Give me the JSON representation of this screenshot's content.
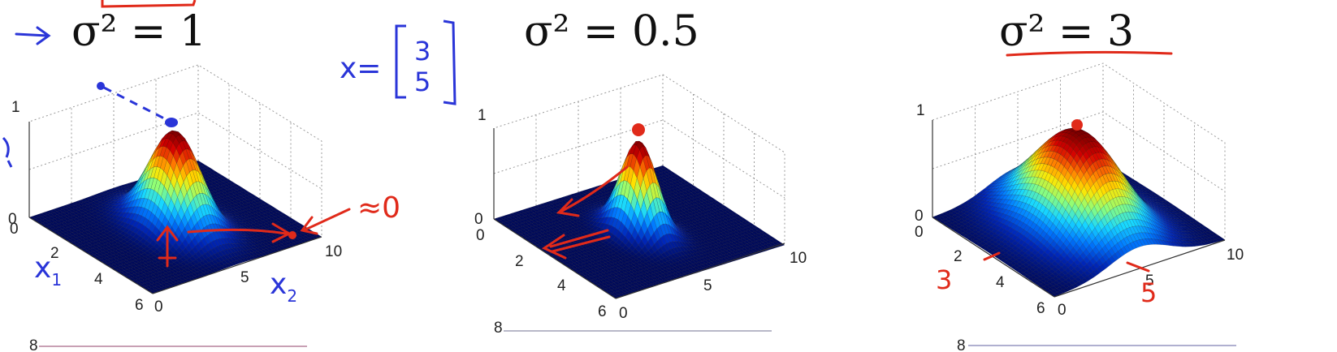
{
  "panels": [
    {
      "title": "σ² = 1",
      "variance": 1,
      "z_ticks": [
        "0",
        "1"
      ],
      "x1_ticks": [
        "0",
        "2",
        "4",
        "6"
      ],
      "x2_ticks": [
        "0",
        "5",
        "10"
      ],
      "next_ticks_label": "8"
    },
    {
      "title": "σ² = 0.5",
      "variance": 0.5,
      "z_ticks": [
        "0",
        "1"
      ],
      "x1_ticks": [
        "0",
        "2",
        "4",
        "6"
      ],
      "x2_ticks": [
        "0",
        "5",
        "10"
      ],
      "next_ticks_label": "8"
    },
    {
      "title": "σ² = 3",
      "variance": 3,
      "z_ticks": [
        "0",
        "1"
      ],
      "x1_ticks": [
        "0",
        "2",
        "4",
        "6"
      ],
      "x2_ticks": [
        "0",
        "5",
        "10"
      ],
      "next_ticks_label": "8"
    }
  ],
  "annotations": {
    "x_vector_label": "x=",
    "x_vector_values": [
      "3",
      "5"
    ],
    "approx_zero": "≈0",
    "x1_label": "x",
    "x1_sub": "1",
    "x2_label": "x",
    "x2_sub": "2",
    "three": "3",
    "five": "5",
    "ink_colors": {
      "blue": "#2a35d8",
      "red": "#e02a1a"
    }
  },
  "colormap": [
    "#000a5a",
    "#0026b8",
    "#0078ff",
    "#18d8ff",
    "#8cff7c",
    "#ffe600",
    "#ff7800",
    "#d40000",
    "#7a0000"
  ]
}
